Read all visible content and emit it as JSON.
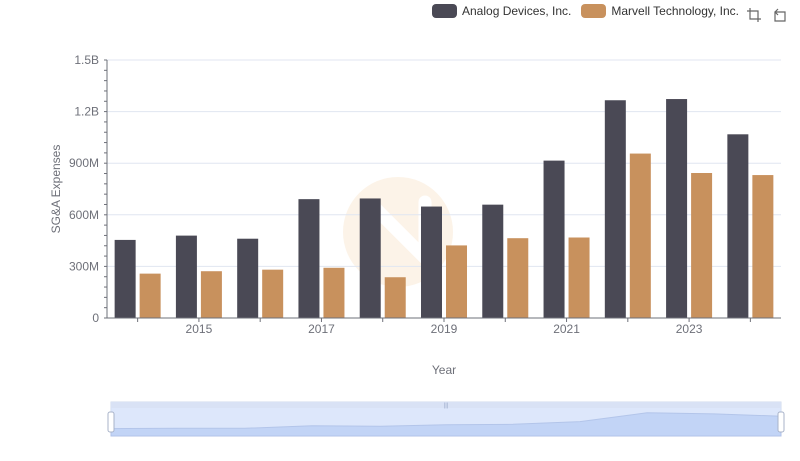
{
  "legend": {
    "items": [
      {
        "name": "Analog Devices, Inc.",
        "color": "#4a4955"
      },
      {
        "name": "Marvell Technology, Inc.",
        "color": "#c8915d"
      }
    ]
  },
  "toolbox": {
    "icons": [
      "zoom-icon",
      "restore-icon"
    ]
  },
  "chart_data": {
    "type": "bar",
    "xlabel": "Year",
    "ylabel": "SG&A Expenses",
    "ylim": [
      0,
      1500000000
    ],
    "y_ticks": [
      0,
      300000000,
      600000000,
      900000000,
      1200000000,
      1500000000
    ],
    "y_tick_labels": [
      "0",
      "300M",
      "600M",
      "900M",
      "1.2B",
      "1.5B"
    ],
    "categories": [
      "2014",
      "2015",
      "2016",
      "2017",
      "2018",
      "2019",
      "2020",
      "2021",
      "2022",
      "2023",
      "2024"
    ],
    "x_tick_labels": [
      "2015",
      "2017",
      "2019",
      "2021",
      "2023"
    ],
    "grid": true,
    "legend_position": "top-right",
    "series": [
      {
        "name": "Analog Devices, Inc.",
        "color": "#4a4955",
        "values": [
          454000000,
          479000000,
          461000000,
          691000000,
          695000000,
          648000000,
          659000000,
          915000000,
          1266000000,
          1273000000,
          1068000000
        ]
      },
      {
        "name": "Marvell Technology, Inc.",
        "color": "#c8915d",
        "values": [
          258000000,
          272000000,
          281000000,
          292000000,
          237000000,
          422000000,
          464000000,
          468000000,
          956000000,
          843000000,
          831000000
        ]
      }
    ],
    "dataZoom": {
      "start": 0,
      "end": 100
    }
  }
}
